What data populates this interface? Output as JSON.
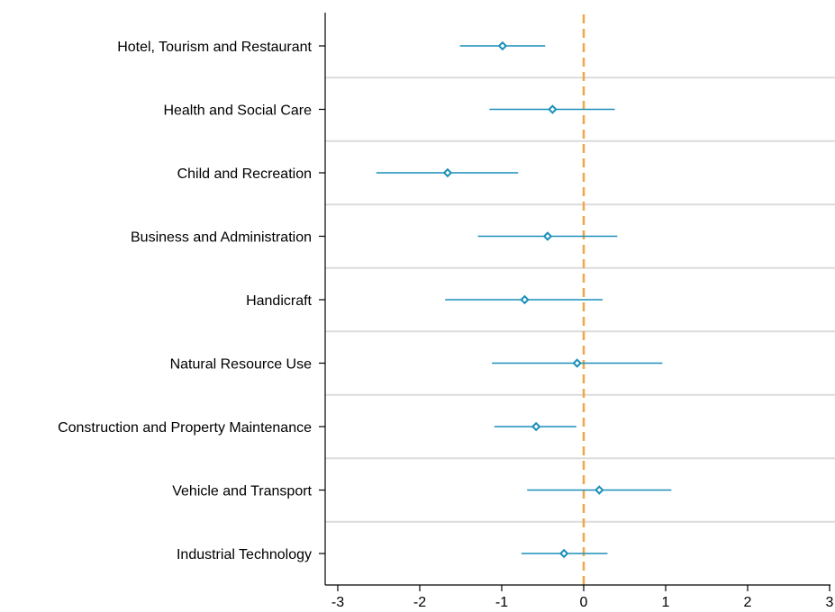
{
  "chart_data": {
    "type": "scatter",
    "orientation": "horizontal",
    "categories": [
      "Hotel, Tourism and Restaurant",
      "Health and Social Care",
      "Child and Recreation",
      "Business and Administration",
      "Handicraft",
      "Natural Resource Use",
      "Construction and Property Maintenance",
      "Vehicle and Transport",
      "Industrial Technology"
    ],
    "series": [
      {
        "estimates": [
          -0.99,
          -0.38,
          -1.66,
          -0.44,
          -0.72,
          -0.08,
          -0.58,
          0.19,
          -0.24
        ],
        "ci_low": [
          -1.51,
          -1.15,
          -2.53,
          -1.29,
          -1.69,
          -1.12,
          -1.09,
          -0.69,
          -0.76
        ],
        "ci_high": [
          -0.47,
          0.38,
          -0.8,
          0.41,
          0.23,
          0.96,
          -0.09,
          1.07,
          0.29
        ]
      }
    ],
    "xticks": [
      -3,
      -2,
      -1,
      0,
      1,
      2,
      3
    ],
    "xlim": [
      -3,
      3
    ],
    "reference_line": {
      "x": 0,
      "style": "dashed"
    },
    "title": "",
    "xlabel": "",
    "ylabel": "",
    "grid": "horizontal separators between categories",
    "colors": {
      "marker": "#1a8fb8",
      "reference_line": "#f0a54a",
      "separator": "#dcdcdc",
      "axis": "#000000"
    }
  }
}
